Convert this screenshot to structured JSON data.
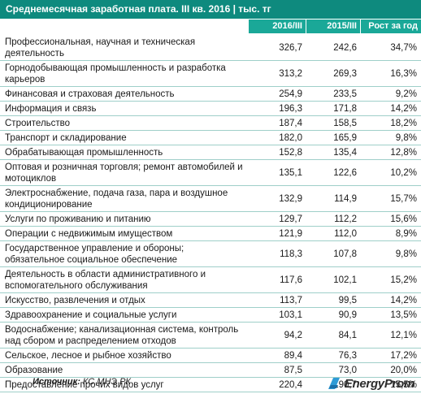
{
  "title": "Среднемесячная заработная плата. III кв. 2016 | тыс. тг",
  "columns": [
    "2016/III",
    "2015/III",
    "Рост за год"
  ],
  "rows": [
    {
      "name": "Профессиональная, научная и техническая деятельность",
      "v2016": "326,7",
      "v2015": "242,6",
      "growth": "34,7%"
    },
    {
      "name": "Горнодобывающая промышленность и разработка карьеров",
      "v2016": "313,2",
      "v2015": "269,3",
      "growth": "16,3%"
    },
    {
      "name": "Финансовая и страховая деятельность",
      "v2016": "254,9",
      "v2015": "233,5",
      "growth": "9,2%"
    },
    {
      "name": "Информация и связь",
      "v2016": "196,3",
      "v2015": "171,8",
      "growth": "14,2%"
    },
    {
      "name": "Строительство",
      "v2016": "187,4",
      "v2015": "158,5",
      "growth": "18,2%"
    },
    {
      "name": "Транспорт и складирование",
      "v2016": "182,0",
      "v2015": "165,9",
      "growth": "9,8%"
    },
    {
      "name": "Обрабатывающая промышленность",
      "v2016": "152,8",
      "v2015": "135,4",
      "growth": "12,8%"
    },
    {
      "name": "Оптовая и розничная торговля; ремонт автомобилей и мотоциклов",
      "v2016": "135,1",
      "v2015": "122,6",
      "growth": "10,2%"
    },
    {
      "name": "Электроснабжение, подача газа, пара и воздушное кондиционирование",
      "v2016": "132,9",
      "v2015": "114,9",
      "growth": "15,7%"
    },
    {
      "name": "Услуги по проживанию и питанию",
      "v2016": "129,7",
      "v2015": "112,2",
      "growth": "15,6%"
    },
    {
      "name": "Операции с недвижимым имуществом",
      "v2016": "121,9",
      "v2015": "112,0",
      "growth": "8,9%"
    },
    {
      "name": "Государственное управление и обороны; обязательное  социальное обеспечение",
      "v2016": "118,3",
      "v2015": "107,8",
      "growth": "9,8%"
    },
    {
      "name": "Деятельность в области административного и вспомогательного обслуживания",
      "v2016": "117,6",
      "v2015": "102,1",
      "growth": "15,2%"
    },
    {
      "name": "Искусство, развлечения и отдых",
      "v2016": "113,7",
      "v2015": "99,5",
      "growth": "14,2%"
    },
    {
      "name": "Здравоохранение и социальные услуги",
      "v2016": "103,1",
      "v2015": "90,9",
      "growth": "13,5%"
    },
    {
      "name": "Водоснабжение; канализационная система, контроль над сбором и распределением отходов",
      "v2016": "94,2",
      "v2015": "84,1",
      "growth": "12,1%"
    },
    {
      "name": "Сельское, лесное и рыбное хозяйство",
      "v2016": "89,4",
      "v2015": "76,3",
      "growth": "17,2%"
    },
    {
      "name": "Образование",
      "v2016": "87,5",
      "v2015": "73,0",
      "growth": "20,0%"
    },
    {
      "name": "Предоставление прочих видов услуг",
      "v2016": "220,4",
      "v2015": "190,7",
      "growth": "15,5%"
    }
  ],
  "footer": {
    "source_label": "Источник:",
    "source_value": "КС МНЭ РК",
    "logo_name": "EnergyProm"
  },
  "colors": {
    "title_bg": "#0e8a7e",
    "header_bg": "#1aa898",
    "row_border": "#9fcfc9",
    "logo_accent": "#2e9bd6"
  }
}
